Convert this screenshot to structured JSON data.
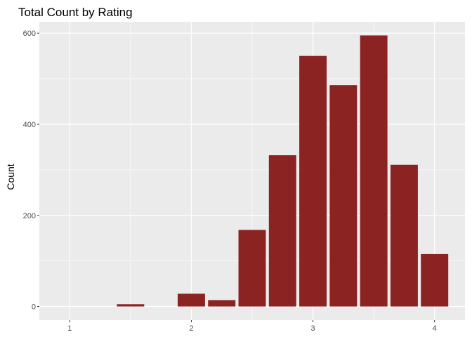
{
  "chart_data": {
    "type": "bar",
    "title": "Total Count by Rating",
    "xlabel": "",
    "ylabel": "Count",
    "x": [
      1.5,
      2.0,
      2.25,
      2.5,
      2.75,
      3.0,
      3.25,
      3.5,
      3.75,
      4.0
    ],
    "values": [
      5,
      28,
      14,
      168,
      332,
      550,
      486,
      595,
      311,
      115
    ],
    "xlim": [
      0.75,
      4.25
    ],
    "ylim": [
      -30,
      625
    ],
    "x_ticks": [
      1,
      2,
      3,
      4
    ],
    "y_ticks": [
      0,
      200,
      400,
      600
    ],
    "bar_width": 0.225,
    "bar_color": "#8B2323",
    "panel_background": "#EBEBEB",
    "grid": true,
    "legend": "none"
  }
}
